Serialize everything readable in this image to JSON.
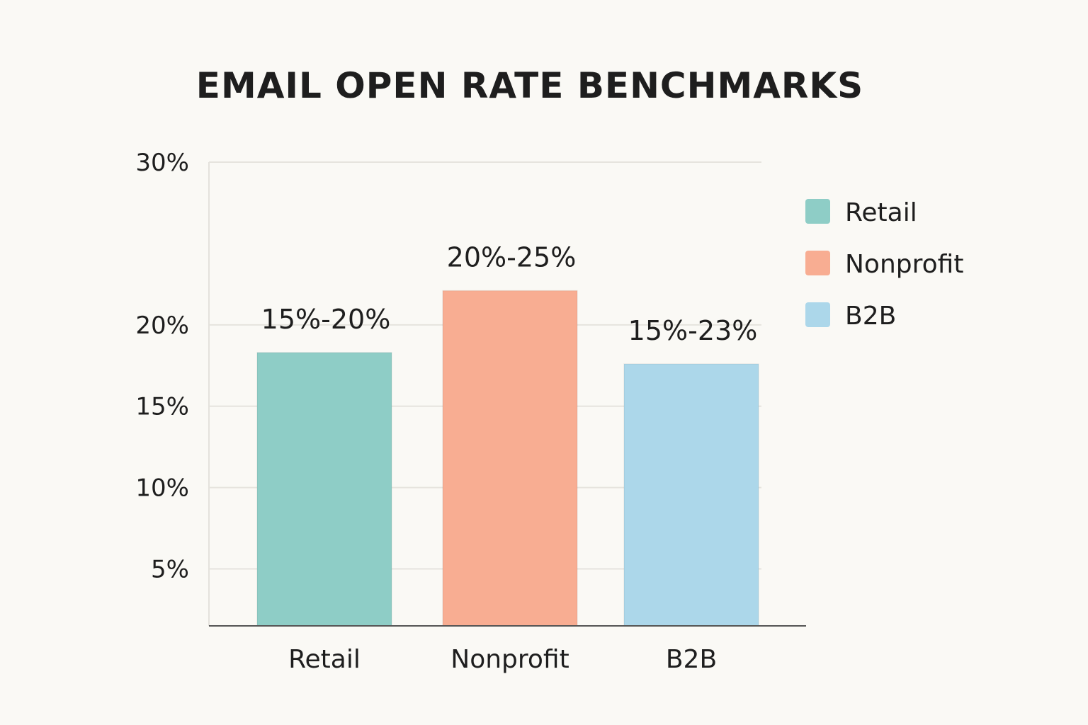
{
  "chart_data": {
    "type": "bar",
    "title": "EMAIL OPEN RATE BENCHMARKS",
    "xlabel": "",
    "ylabel": "",
    "categories": [
      "Retail",
      "Nonprofit",
      "B2B"
    ],
    "values": [
      18.3,
      22.1,
      17.6
    ],
    "data_labels": [
      "15%-20%",
      "20%-25%",
      "15%-23%"
    ],
    "colors": [
      "#8ecdc6",
      "#f8ad92",
      "#acd7ea"
    ],
    "y_ticks": [
      {
        "value": 5,
        "label": "5%"
      },
      {
        "value": 10,
        "label": "10%"
      },
      {
        "value": 15,
        "label": "15%"
      },
      {
        "value": 20,
        "label": "20%"
      },
      {
        "value": 30,
        "label": "30%"
      }
    ],
    "ylim": [
      1.5,
      30
    ],
    "grid": true,
    "legend": {
      "placement": "right",
      "entries": [
        "Retail",
        "Nonprofit",
        "B2B"
      ]
    }
  }
}
